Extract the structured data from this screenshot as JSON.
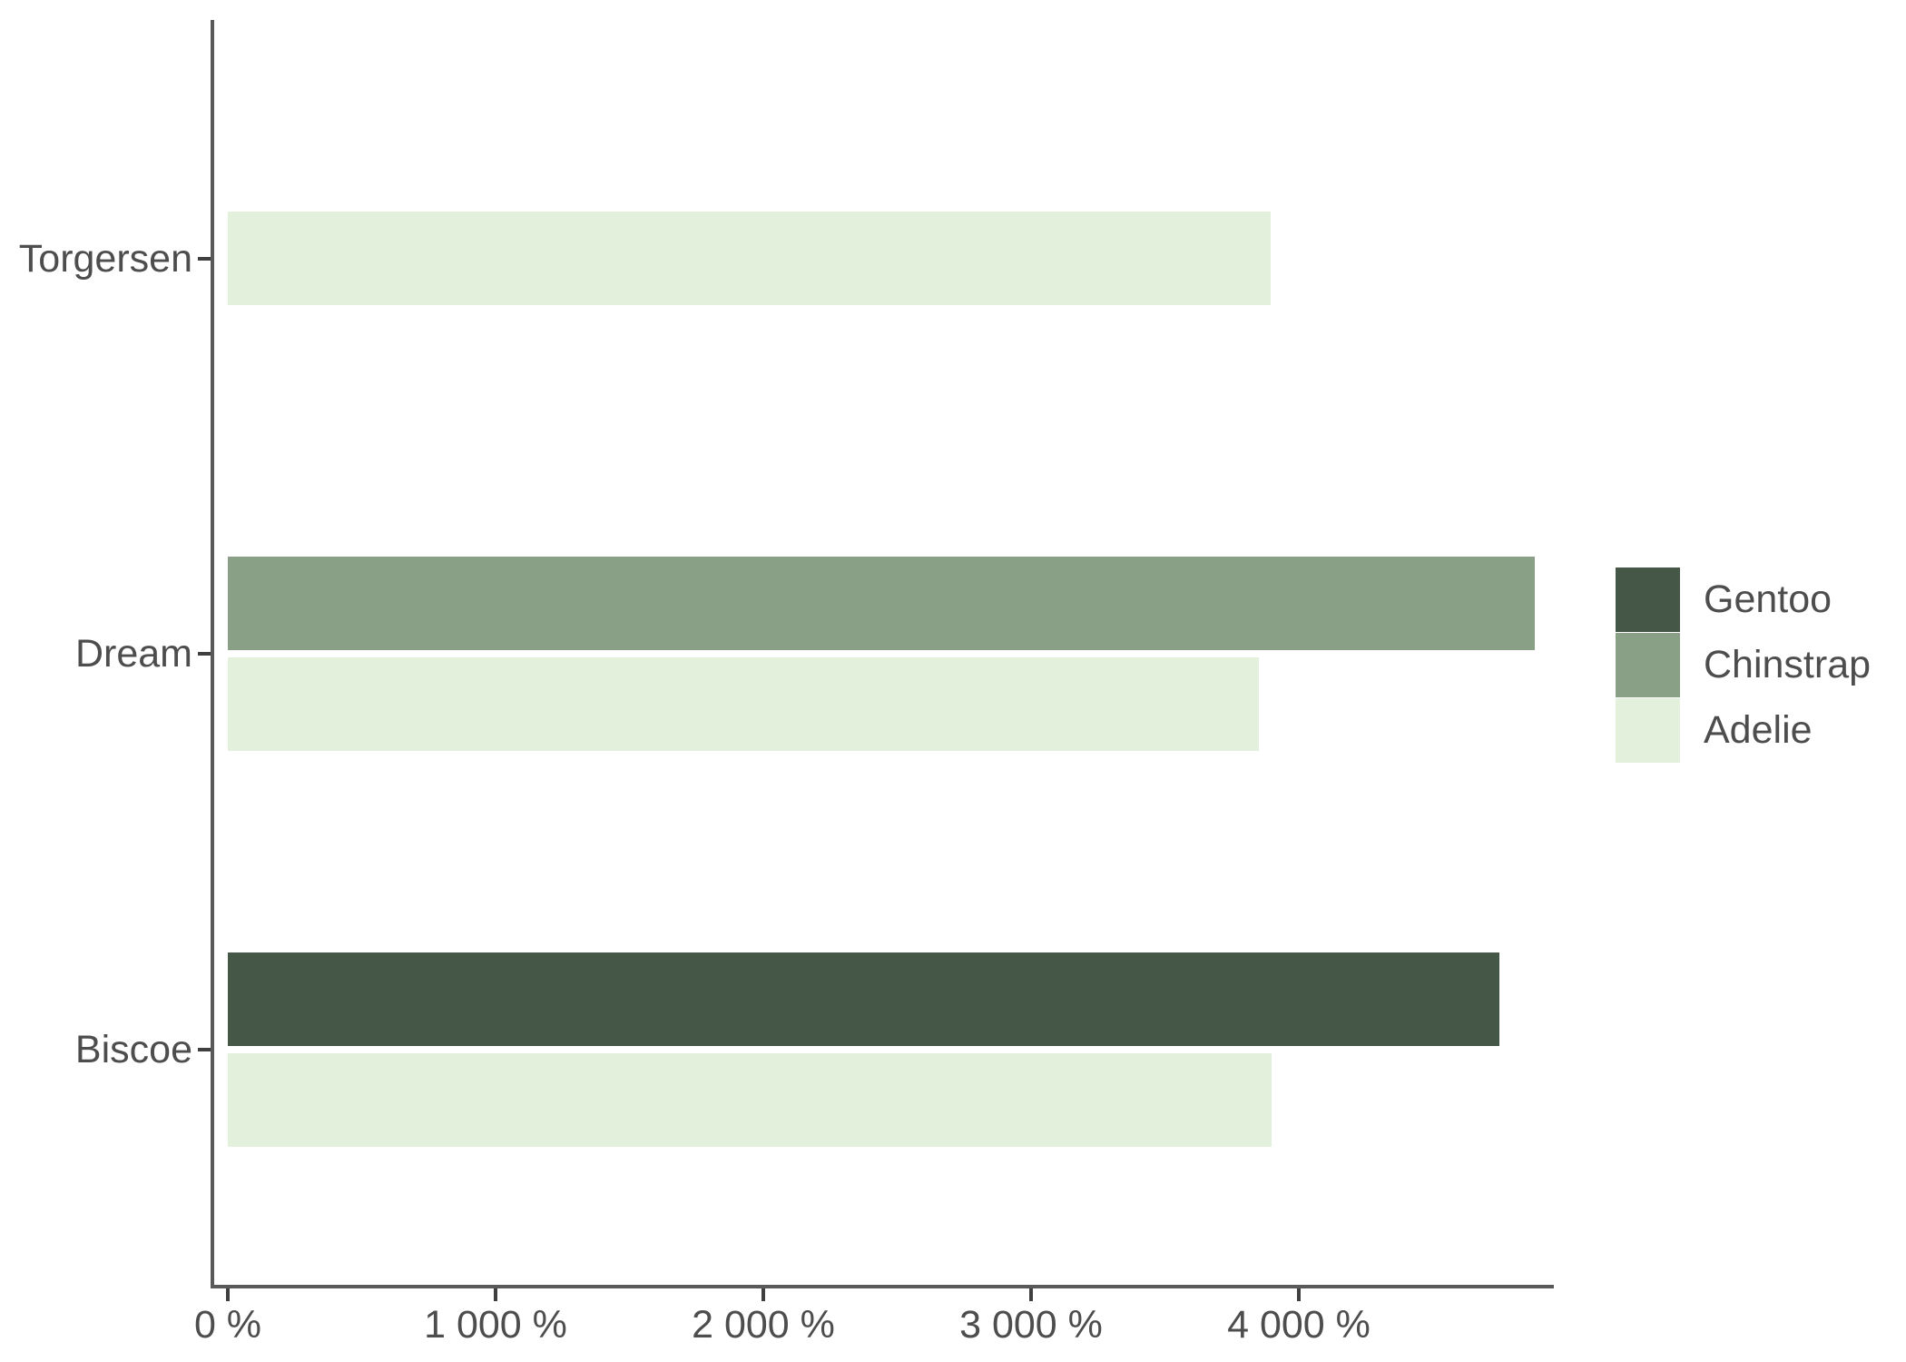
{
  "chart_data": {
    "type": "bar",
    "orientation": "horizontal",
    "title": "",
    "xlabel": "",
    "ylabel": "",
    "value_unit": "%",
    "xlim": [
      0,
      5000
    ],
    "grid": false,
    "background_color": "#FFFFFF",
    "axis_line_color": "#595959",
    "tick_color": "#3F3F3F",
    "text_color": "#4D4D4D",
    "x_ticks": [
      {
        "value": 0,
        "label": "0 %"
      },
      {
        "value": 1000,
        "label": "1 000 %"
      },
      {
        "value": 2000,
        "label": "2 000 %"
      },
      {
        "value": 3000,
        "label": "3 000 %"
      },
      {
        "value": 4000,
        "label": "4 000 %"
      }
    ],
    "categories": [
      "Torgersen",
      "Dream",
      "Biscoe"
    ],
    "groups": [
      {
        "category": "Torgersen",
        "bars": [
          {
            "series": "Adelie",
            "value": 3895
          }
        ]
      },
      {
        "category": "Dream",
        "bars": [
          {
            "series": "Chinstrap",
            "value": 4883
          },
          {
            "series": "Adelie",
            "value": 3850
          }
        ]
      },
      {
        "category": "Biscoe",
        "bars": [
          {
            "series": "Gentoo",
            "value": 4750
          },
          {
            "series": "Adelie",
            "value": 3898
          }
        ]
      }
    ],
    "legend": {
      "position": "right",
      "entries": [
        {
          "label": "Gentoo",
          "color": "#455746"
        },
        {
          "label": "Chinstrap",
          "color": "#8AA086"
        },
        {
          "label": "Adelie",
          "color": "#E3F0DB"
        }
      ]
    }
  }
}
